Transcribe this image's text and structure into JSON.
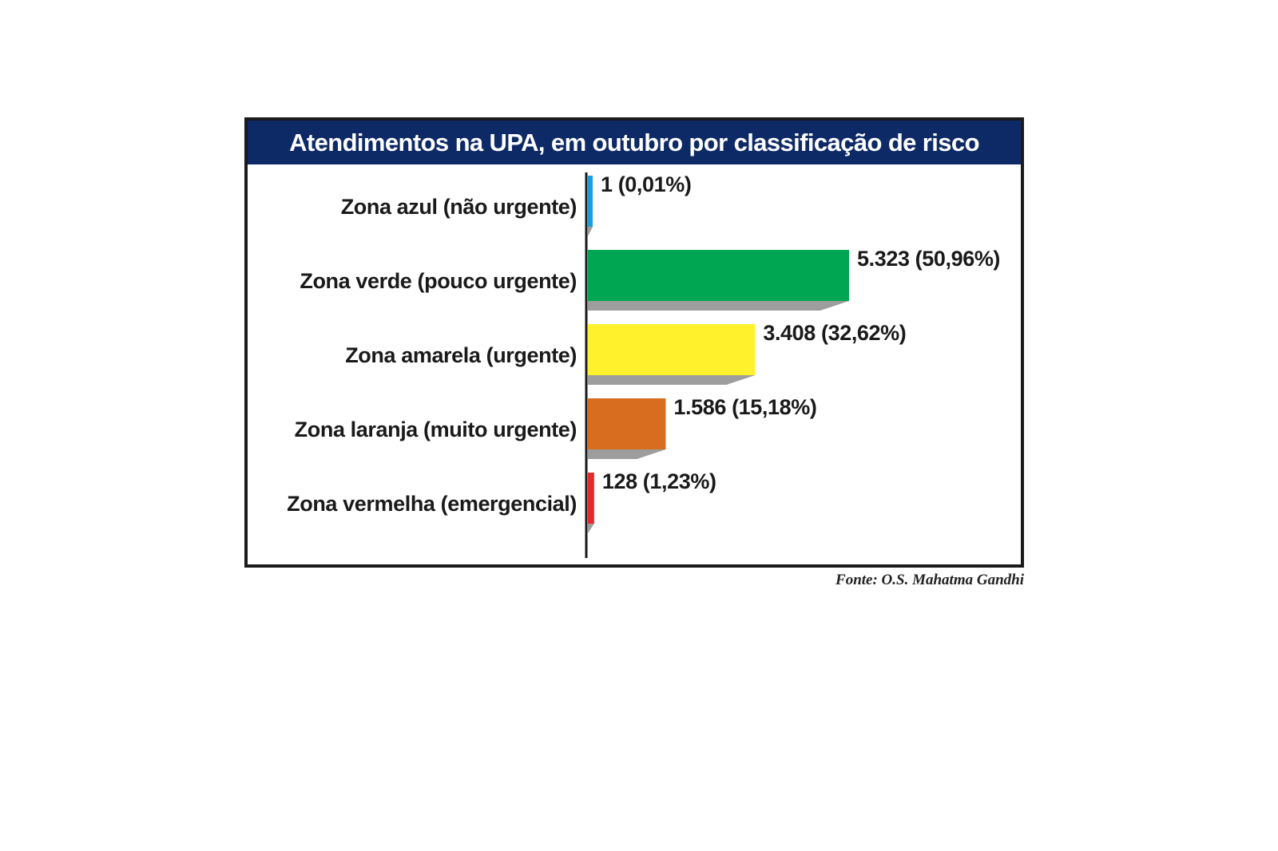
{
  "chart_data": {
    "type": "bar",
    "orientation": "horizontal",
    "title": "Atendimentos na UPA, em outubro por classificação de risco",
    "categories": [
      "Zona azul (não urgente)",
      "Zona verde (pouco urgente)",
      "Zona amarela (urgente)",
      "Zona laranja (muito urgente)",
      "Zona vermelha (emergencial)"
    ],
    "values": [
      1,
      5323,
      3408,
      1586,
      128
    ],
    "data_labels": [
      "1 (0,01%)",
      "5.323 (50,96%)",
      "3.408 (32,62%)",
      "1.586 (15,18%)",
      "128 (1,23%)"
    ],
    "percentages": [
      0.01,
      50.96,
      32.62,
      15.18,
      1.23
    ],
    "colors": [
      "#1a9fdb",
      "#00a651",
      "#fff22d",
      "#d86d1f",
      "#e52a2e"
    ],
    "shadow_color": "#9d9d9d",
    "xlim": [
      0,
      5323
    ],
    "grid": false,
    "legend": "none"
  },
  "source": "Fonte: O.S. Mahatma Gandhi"
}
